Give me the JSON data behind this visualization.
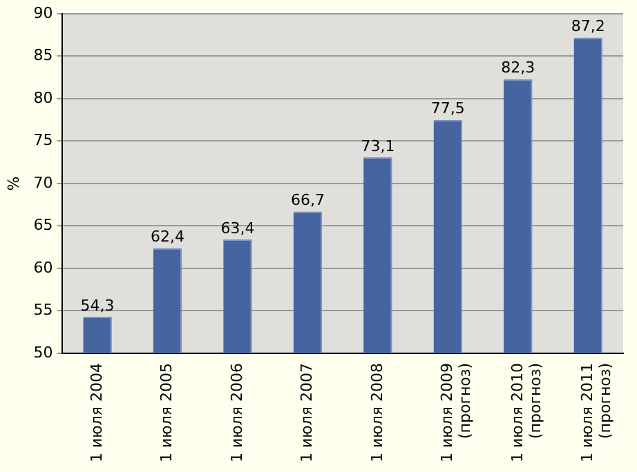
{
  "chart_data": {
    "type": "bar",
    "ylabel": "%",
    "categories": [
      "1 июля 2004",
      "1 июля 2005",
      "1 июля 2006",
      "1 июля 2007",
      "1 июля 2008",
      "1 июля 2009\n(прогноз)",
      "1 июля 2010\n(прогноз)",
      "1 июля 2011\n(прогноз)"
    ],
    "values": [
      54.3,
      62.4,
      63.4,
      66.7,
      73.1,
      77.5,
      82.3,
      87.2
    ],
    "value_labels": [
      "54,3",
      "62,4",
      "63,4",
      "66,7",
      "73,1",
      "77,5",
      "82,3",
      "87,2"
    ],
    "color": "#4564a0",
    "ylim": [
      50,
      90
    ],
    "yticks": [
      50,
      55,
      60,
      65,
      70,
      75,
      80,
      85,
      90
    ],
    "grid": "y"
  }
}
